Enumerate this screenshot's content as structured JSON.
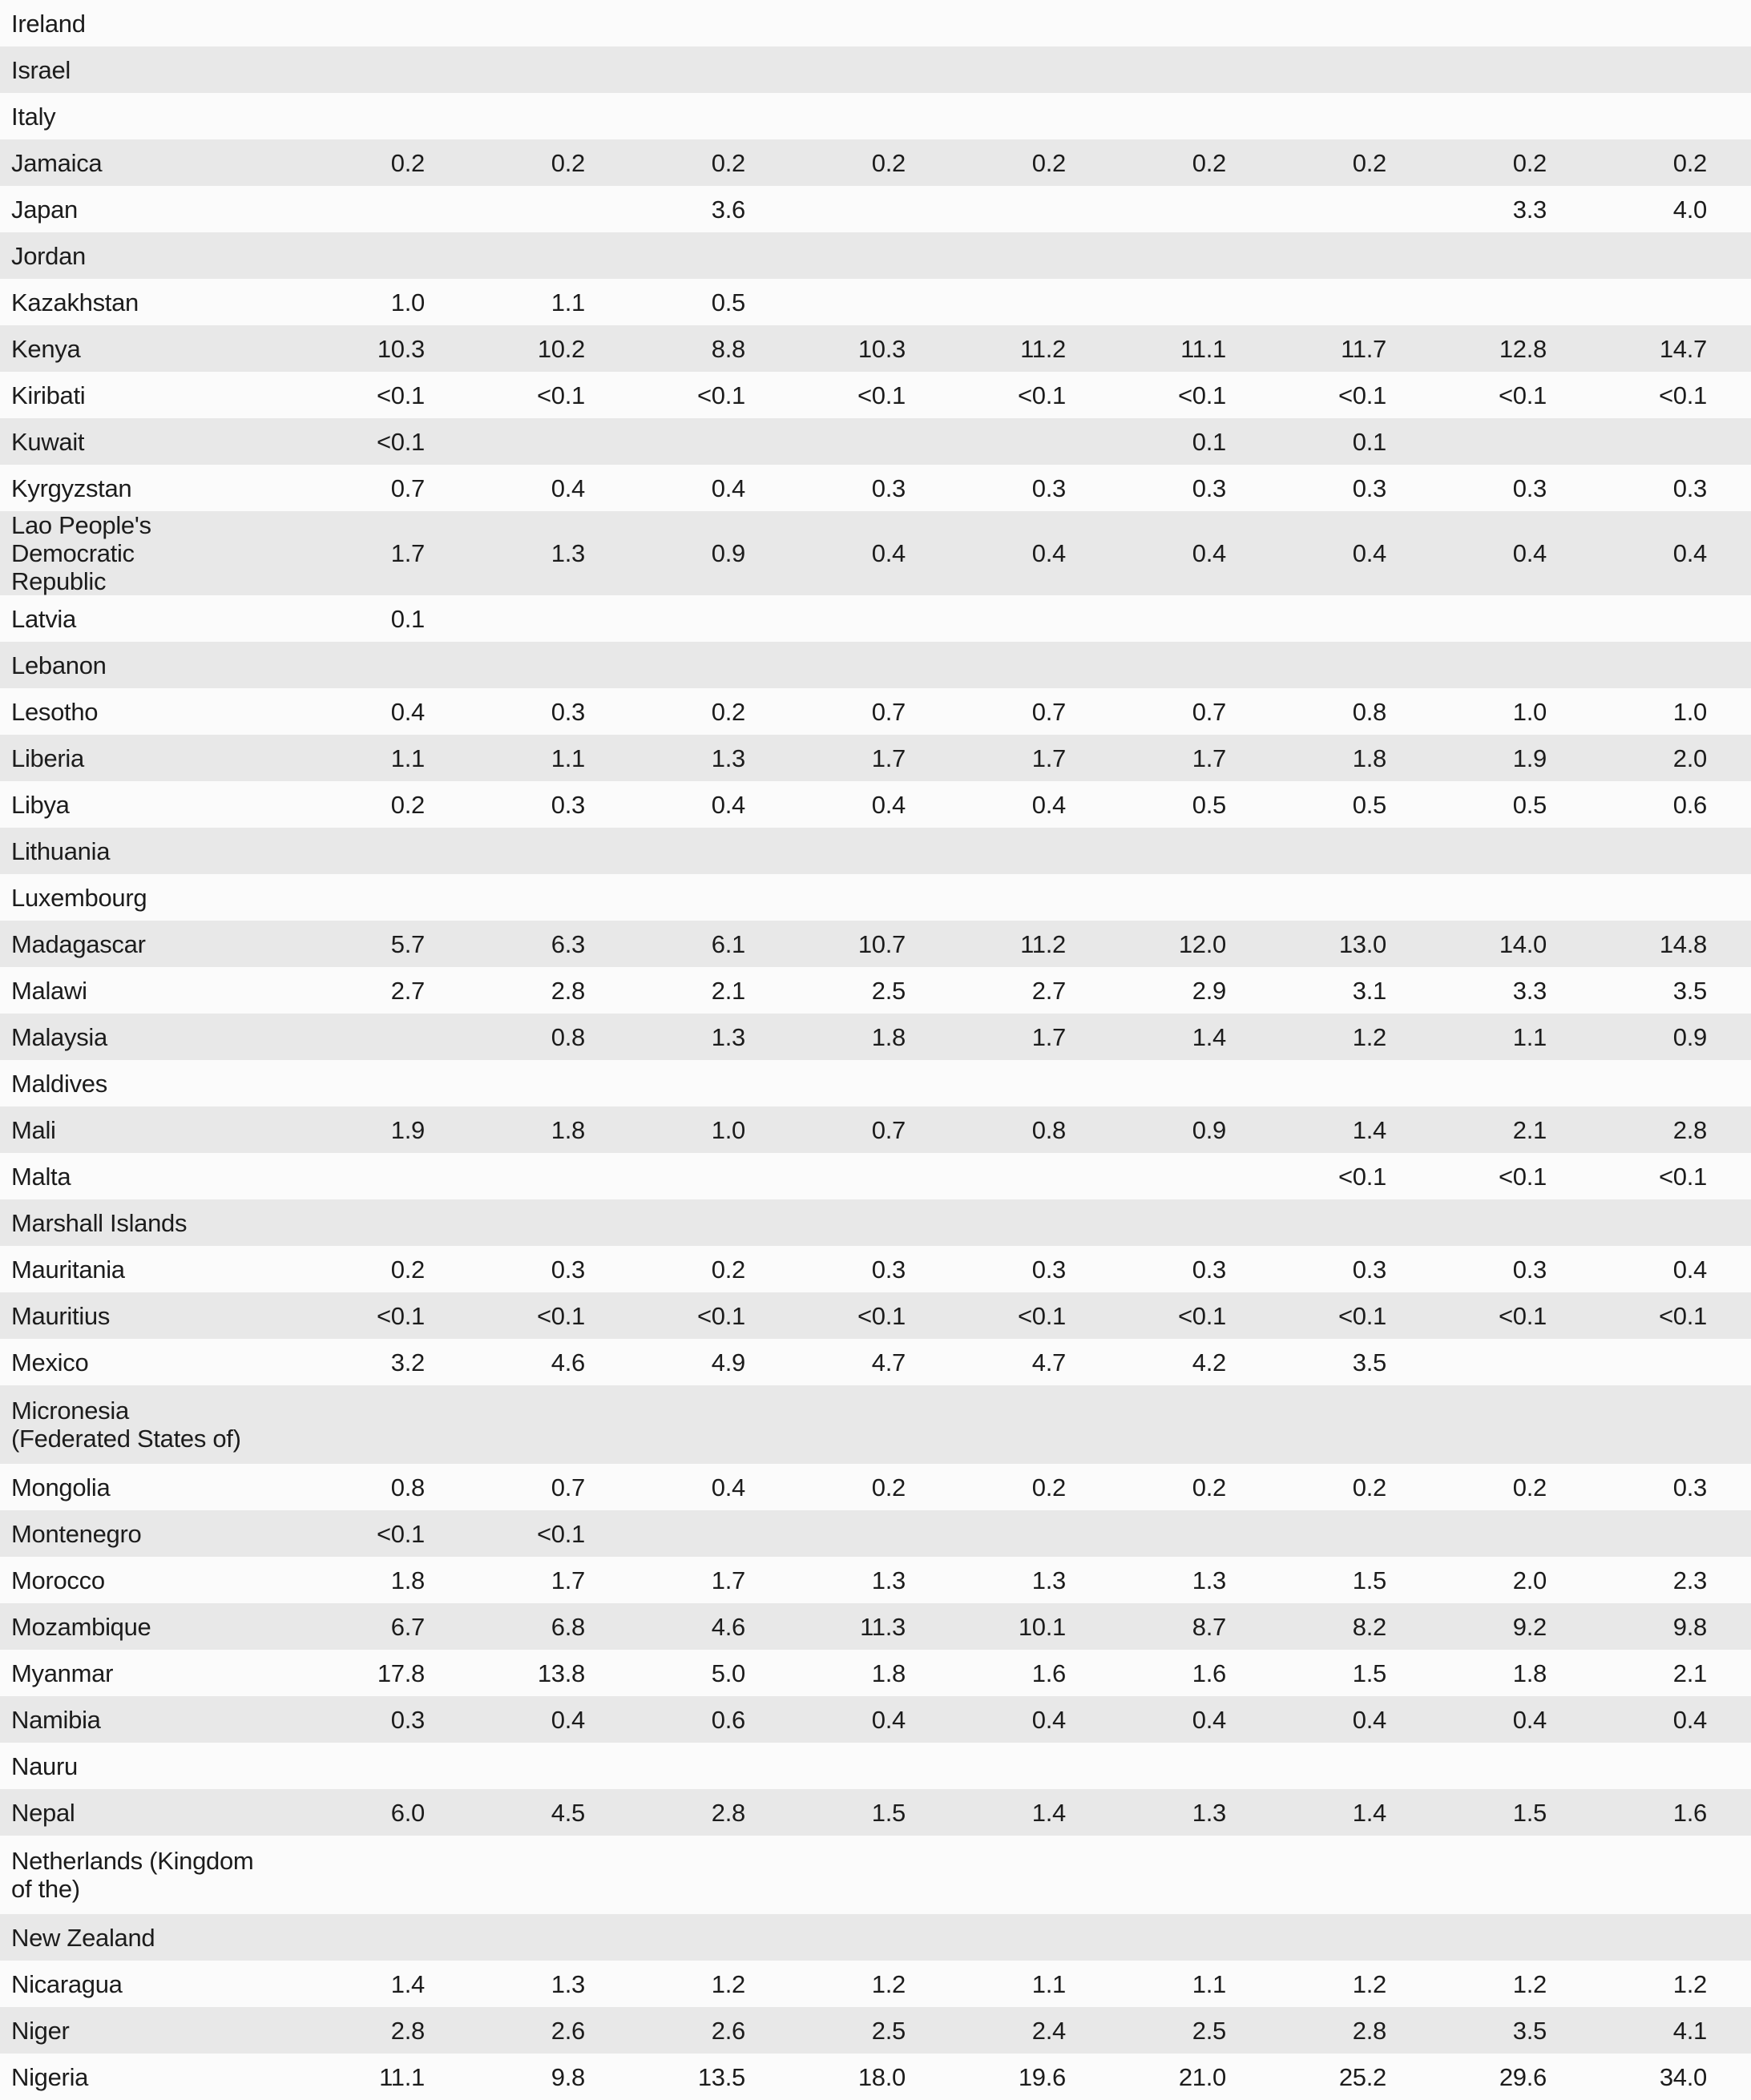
{
  "colors": {
    "row_base": "#fbfbfb",
    "row_alternate": "#e8e8e8",
    "text": "#1c1c1c"
  },
  "table": {
    "num_value_columns": 9,
    "rows": [
      {
        "country": "Ireland",
        "values": [
          "",
          "",
          "",
          "",
          "",
          "",
          "",
          "",
          ""
        ]
      },
      {
        "country": "Israel",
        "values": [
          "",
          "",
          "",
          "",
          "",
          "",
          "",
          "",
          ""
        ]
      },
      {
        "country": "Italy",
        "values": [
          "",
          "",
          "",
          "",
          "",
          "",
          "",
          "",
          ""
        ]
      },
      {
        "country": "Jamaica",
        "values": [
          "0.2",
          "0.2",
          "0.2",
          "0.2",
          "0.2",
          "0.2",
          "0.2",
          "0.2",
          "0.2"
        ]
      },
      {
        "country": "Japan",
        "values": [
          "",
          "",
          "3.6",
          "",
          "",
          "",
          "",
          "3.3",
          "4.0"
        ]
      },
      {
        "country": "Jordan",
        "values": [
          "",
          "",
          "",
          "",
          "",
          "",
          "",
          "",
          ""
        ]
      },
      {
        "country": "Kazakhstan",
        "values": [
          "1.0",
          "1.1",
          "0.5",
          "",
          "",
          "",
          "",
          "",
          ""
        ]
      },
      {
        "country": "Kenya",
        "values": [
          "10.3",
          "10.2",
          "8.8",
          "10.3",
          "11.2",
          "11.1",
          "11.7",
          "12.8",
          "14.7"
        ]
      },
      {
        "country": "Kiribati",
        "values": [
          "<0.1",
          "<0.1",
          "<0.1",
          "<0.1",
          "<0.1",
          "<0.1",
          "<0.1",
          "<0.1",
          "<0.1"
        ]
      },
      {
        "country": "Kuwait",
        "values": [
          "<0.1",
          "",
          "",
          "",
          "",
          "0.1",
          "0.1",
          "",
          ""
        ]
      },
      {
        "country": "Kyrgyzstan",
        "values": [
          "0.7",
          "0.4",
          "0.4",
          "0.3",
          "0.3",
          "0.3",
          "0.3",
          "0.3",
          "0.3"
        ]
      },
      {
        "country": "Lao People's Democratic\nRepublic",
        "values": [
          "1.7",
          "1.3",
          "0.9",
          "0.4",
          "0.4",
          "0.4",
          "0.4",
          "0.4",
          "0.4"
        ]
      },
      {
        "country": "Latvia",
        "values": [
          "0.1",
          "",
          "",
          "",
          "",
          "",
          "",
          "",
          ""
        ]
      },
      {
        "country": "Lebanon",
        "values": [
          "",
          "",
          "",
          "",
          "",
          "",
          "",
          "",
          ""
        ]
      },
      {
        "country": "Lesotho",
        "values": [
          "0.4",
          "0.3",
          "0.2",
          "0.7",
          "0.7",
          "0.7",
          "0.8",
          "1.0",
          "1.0"
        ]
      },
      {
        "country": "Liberia",
        "values": [
          "1.1",
          "1.1",
          "1.3",
          "1.7",
          "1.7",
          "1.7",
          "1.8",
          "1.9",
          "2.0"
        ]
      },
      {
        "country": "Libya",
        "values": [
          "0.2",
          "0.3",
          "0.4",
          "0.4",
          "0.4",
          "0.5",
          "0.5",
          "0.5",
          "0.6"
        ]
      },
      {
        "country": "Lithuania",
        "values": [
          "",
          "",
          "",
          "",
          "",
          "",
          "",
          "",
          ""
        ]
      },
      {
        "country": "Luxembourg",
        "values": [
          "",
          "",
          "",
          "",
          "",
          "",
          "",
          "",
          ""
        ]
      },
      {
        "country": "Madagascar",
        "values": [
          "5.7",
          "6.3",
          "6.1",
          "10.7",
          "11.2",
          "12.0",
          "13.0",
          "14.0",
          "14.8"
        ]
      },
      {
        "country": "Malawi",
        "values": [
          "2.7",
          "2.8",
          "2.1",
          "2.5",
          "2.7",
          "2.9",
          "3.1",
          "3.3",
          "3.5"
        ]
      },
      {
        "country": "Malaysia",
        "values": [
          "",
          "0.8",
          "1.3",
          "1.8",
          "1.7",
          "1.4",
          "1.2",
          "1.1",
          "0.9"
        ]
      },
      {
        "country": "Maldives",
        "values": [
          "",
          "",
          "",
          "",
          "",
          "",
          "",
          "",
          ""
        ]
      },
      {
        "country": "Mali",
        "values": [
          "1.9",
          "1.8",
          "1.0",
          "0.7",
          "0.8",
          "0.9",
          "1.4",
          "2.1",
          "2.8"
        ]
      },
      {
        "country": "Malta",
        "values": [
          "",
          "",
          "",
          "",
          "",
          "",
          "<0.1",
          "<0.1",
          "<0.1"
        ]
      },
      {
        "country": "Marshall Islands",
        "values": [
          "",
          "",
          "",
          "",
          "",
          "",
          "",
          "",
          ""
        ]
      },
      {
        "country": "Mauritania",
        "values": [
          "0.2",
          "0.3",
          "0.2",
          "0.3",
          "0.3",
          "0.3",
          "0.3",
          "0.3",
          "0.4"
        ]
      },
      {
        "country": "Mauritius",
        "values": [
          "<0.1",
          "<0.1",
          "<0.1",
          "<0.1",
          "<0.1",
          "<0.1",
          "<0.1",
          "<0.1",
          "<0.1"
        ]
      },
      {
        "country": "Mexico",
        "values": [
          "3.2",
          "4.6",
          "4.9",
          "4.7",
          "4.7",
          "4.2",
          "3.5",
          "",
          ""
        ]
      },
      {
        "country": "Micronesia\n(Federated States of)",
        "values": [
          "",
          "",
          "",
          "",
          "",
          "",
          "",
          "",
          ""
        ]
      },
      {
        "country": "Mongolia",
        "values": [
          "0.8",
          "0.7",
          "0.4",
          "0.2",
          "0.2",
          "0.2",
          "0.2",
          "0.2",
          "0.3"
        ]
      },
      {
        "country": "Montenegro",
        "values": [
          "<0.1",
          "<0.1",
          "",
          "",
          "",
          "",
          "",
          "",
          ""
        ]
      },
      {
        "country": "Morocco",
        "values": [
          "1.8",
          "1.7",
          "1.7",
          "1.3",
          "1.3",
          "1.3",
          "1.5",
          "2.0",
          "2.3"
        ]
      },
      {
        "country": "Mozambique",
        "values": [
          "6.7",
          "6.8",
          "4.6",
          "11.3",
          "10.1",
          "8.7",
          "8.2",
          "9.2",
          "9.8"
        ]
      },
      {
        "country": "Myanmar",
        "values": [
          "17.8",
          "13.8",
          "5.0",
          "1.8",
          "1.6",
          "1.6",
          "1.5",
          "1.8",
          "2.1"
        ]
      },
      {
        "country": "Namibia",
        "values": [
          "0.3",
          "0.4",
          "0.6",
          "0.4",
          "0.4",
          "0.4",
          "0.4",
          "0.4",
          "0.4"
        ]
      },
      {
        "country": "Nauru",
        "values": [
          "",
          "",
          "",
          "",
          "",
          "",
          "",
          "",
          ""
        ]
      },
      {
        "country": "Nepal",
        "values": [
          "6.0",
          "4.5",
          "2.8",
          "1.5",
          "1.4",
          "1.3",
          "1.4",
          "1.5",
          "1.6"
        ]
      },
      {
        "country": "Netherlands (Kingdom\nof the)",
        "values": [
          "",
          "",
          "",
          "",
          "",
          "",
          "",
          "",
          ""
        ]
      },
      {
        "country": "New Zealand",
        "values": [
          "",
          "",
          "",
          "",
          "",
          "",
          "",
          "",
          ""
        ]
      },
      {
        "country": "Nicaragua",
        "values": [
          "1.4",
          "1.3",
          "1.2",
          "1.2",
          "1.1",
          "1.1",
          "1.2",
          "1.2",
          "1.2"
        ]
      },
      {
        "country": "Niger",
        "values": [
          "2.8",
          "2.6",
          "2.6",
          "2.5",
          "2.4",
          "2.5",
          "2.8",
          "3.5",
          "4.1"
        ]
      },
      {
        "country": "Nigeria",
        "values": [
          "11.1",
          "9.8",
          "13.5",
          "18.0",
          "19.6",
          "21.0",
          "25.2",
          "29.6",
          "34.0"
        ]
      }
    ]
  }
}
